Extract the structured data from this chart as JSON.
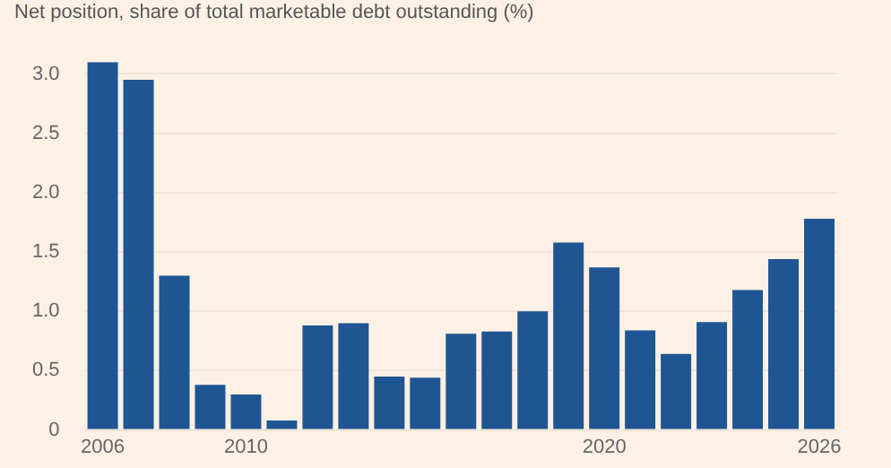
{
  "chart_data": {
    "type": "bar",
    "title": "Net position, share of total marketable debt outstanding (%)",
    "categories": [
      "2006",
      null,
      null,
      null,
      "2010",
      null,
      null,
      null,
      null,
      null,
      null,
      null,
      null,
      null,
      "2020",
      null,
      null,
      null,
      null,
      null,
      "2026"
    ],
    "values": [
      3.1,
      2.95,
      1.3,
      0.38,
      0.3,
      0.08,
      0.88,
      0.9,
      0.45,
      0.44,
      0.81,
      0.83,
      1.0,
      1.58,
      1.37,
      0.84,
      0.64,
      0.91,
      1.18,
      1.44,
      1.78
    ],
    "color": "#1f5592",
    "ylim": [
      0,
      3.1
    ],
    "yticks": [
      0,
      {
        "value": 0.5,
        "label": "0.5"
      },
      {
        "value": 1,
        "label": "1.0"
      },
      {
        "value": 1.5,
        "label": "1.5"
      },
      {
        "value": 2,
        "label": "2.0"
      },
      {
        "value": 2.5,
        "label": "2.5"
      },
      {
        "value": 3,
        "label": "3.0"
      }
    ],
    "grid": "y"
  }
}
